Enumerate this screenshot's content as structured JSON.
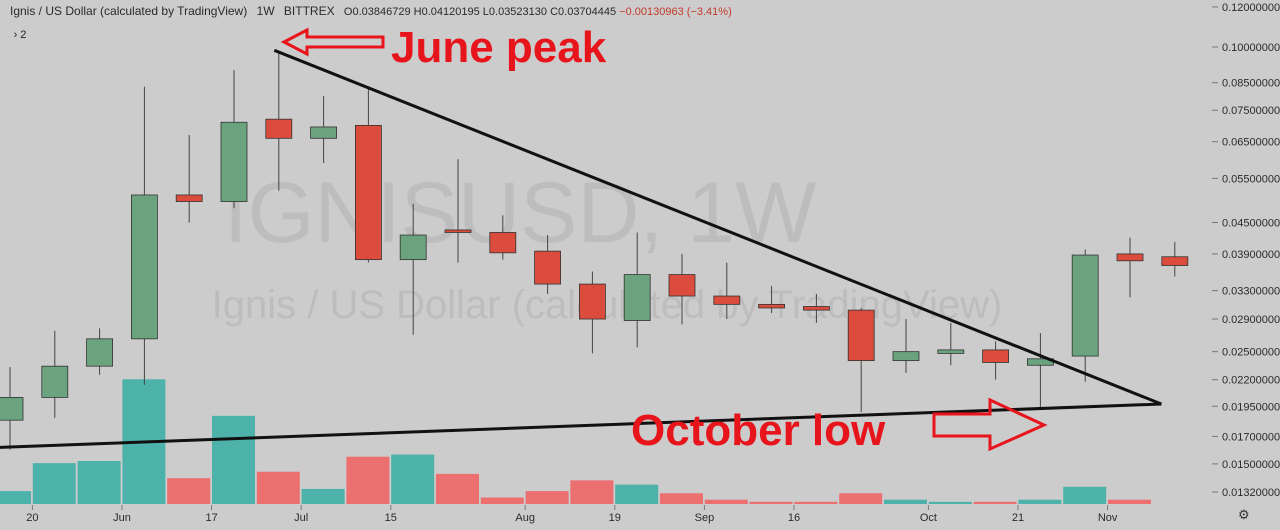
{
  "header": {
    "symbol_desc": "Ignis / US Dollar (calculated by TradingView)",
    "interval": "1W",
    "exchange": "BITTREX",
    "open": "O0.03846729",
    "high": "H0.04120195",
    "low": "L0.03523130",
    "close": "C0.03704445",
    "change": "−0.00130963 (−3.41%)"
  },
  "indicator_toggle": "2",
  "watermark": {
    "symbol": "IGNISUSD, 1W",
    "desc": "Ignis / US Dollar (calculated by TradingView)"
  },
  "annotations": {
    "peak": "June peak",
    "low": "October low"
  },
  "colors": {
    "up": "#6aa37e",
    "down": "#dc4c3c",
    "vol_up": "#4db3aa",
    "vol_down": "#ec7070",
    "annotation": "#e8141c",
    "background": "#cccccc"
  },
  "icons": {
    "settings": "gear-icon",
    "collapse": "chevron-right-icon"
  },
  "chart_data": {
    "type": "candlestick",
    "price_axis": {
      "scale": "log",
      "labels": [
        "0.12000000",
        "0.10000000",
        "0.08500000",
        "0.07500000",
        "0.06500000",
        "0.05500000",
        "0.04500000",
        "0.03900000",
        "0.03300000",
        "0.02900000",
        "0.02500000",
        "0.02200000",
        "0.01950000",
        "0.01700000",
        "0.01500000",
        "0.01320000"
      ],
      "values": [
        0.12,
        0.1,
        0.085,
        0.075,
        0.065,
        0.055,
        0.045,
        0.039,
        0.033,
        0.029,
        0.025,
        0.022,
        0.0195,
        0.017,
        0.015,
        0.0132
      ]
    },
    "time_labels": [
      {
        "label": "20",
        "i": 0.5
      },
      {
        "label": "Jun",
        "i": 2.5
      },
      {
        "label": "17",
        "i": 4.5
      },
      {
        "label": "Jul",
        "i": 6.5
      },
      {
        "label": "15",
        "i": 8.5
      },
      {
        "label": "Aug",
        "i": 11.5
      },
      {
        "label": "19",
        "i": 13.5
      },
      {
        "label": "Sep",
        "i": 15.5
      },
      {
        "label": "16",
        "i": 17.5
      },
      {
        "label": "Oct",
        "i": 20.5
      },
      {
        "label": "21",
        "i": 22.5
      },
      {
        "label": "Nov",
        "i": 24.5
      }
    ],
    "candles": [
      {
        "o": 0.0183,
        "h": 0.0233,
        "l": 0.016,
        "c": 0.0203
      },
      {
        "o": 0.0203,
        "h": 0.0275,
        "l": 0.0185,
        "c": 0.0234
      },
      {
        "o": 0.0234,
        "h": 0.0278,
        "l": 0.0225,
        "c": 0.0265
      },
      {
        "o": 0.0265,
        "h": 0.0835,
        "l": 0.0215,
        "c": 0.051
      },
      {
        "o": 0.051,
        "h": 0.067,
        "l": 0.045,
        "c": 0.0495
      },
      {
        "o": 0.0495,
        "h": 0.09,
        "l": 0.048,
        "c": 0.071
      },
      {
        "o": 0.072,
        "h": 0.098,
        "l": 0.052,
        "c": 0.066
      },
      {
        "o": 0.066,
        "h": 0.08,
        "l": 0.059,
        "c": 0.0695
      },
      {
        "o": 0.07,
        "h": 0.0825,
        "l": 0.0375,
        "c": 0.038
      },
      {
        "o": 0.038,
        "h": 0.049,
        "l": 0.027,
        "c": 0.0425
      },
      {
        "o": 0.0435,
        "h": 0.06,
        "l": 0.0375,
        "c": 0.043
      },
      {
        "o": 0.043,
        "h": 0.0465,
        "l": 0.038,
        "c": 0.0392
      },
      {
        "o": 0.0395,
        "h": 0.0425,
        "l": 0.0325,
        "c": 0.034
      },
      {
        "o": 0.034,
        "h": 0.036,
        "l": 0.0248,
        "c": 0.029
      },
      {
        "o": 0.0288,
        "h": 0.043,
        "l": 0.0255,
        "c": 0.0355
      },
      {
        "o": 0.0355,
        "h": 0.039,
        "l": 0.0283,
        "c": 0.0322
      },
      {
        "o": 0.0322,
        "h": 0.0375,
        "l": 0.029,
        "c": 0.031
      },
      {
        "o": 0.031,
        "h": 0.0337,
        "l": 0.0298,
        "c": 0.0305
      },
      {
        "o": 0.0307,
        "h": 0.0325,
        "l": 0.0285,
        "c": 0.0302
      },
      {
        "o": 0.0302,
        "h": 0.0305,
        "l": 0.019,
        "c": 0.024
      },
      {
        "o": 0.024,
        "h": 0.029,
        "l": 0.0227,
        "c": 0.025
      },
      {
        "o": 0.0248,
        "h": 0.0285,
        "l": 0.0235,
        "c": 0.0252
      },
      {
        "o": 0.0252,
        "h": 0.0262,
        "l": 0.022,
        "c": 0.0238
      },
      {
        "o": 0.0235,
        "h": 0.0272,
        "l": 0.0193,
        "c": 0.0242
      },
      {
        "o": 0.0245,
        "h": 0.0398,
        "l": 0.0218,
        "c": 0.0388
      },
      {
        "o": 0.039,
        "h": 0.042,
        "l": 0.032,
        "c": 0.0378
      },
      {
        "o": 0.0385,
        "h": 0.0412,
        "l": 0.0352,
        "c": 0.037
      }
    ],
    "volume": [
      {
        "v": 6,
        "up": true
      },
      {
        "v": 19,
        "up": true
      },
      {
        "v": 20,
        "up": true
      },
      {
        "v": 58,
        "up": true
      },
      {
        "v": 12,
        "up": false
      },
      {
        "v": 41,
        "up": true
      },
      {
        "v": 15,
        "up": false
      },
      {
        "v": 7,
        "up": true
      },
      {
        "v": 22,
        "up": false
      },
      {
        "v": 23,
        "up": true
      },
      {
        "v": 14,
        "up": false
      },
      {
        "v": 3,
        "up": false
      },
      {
        "v": 6,
        "up": false
      },
      {
        "v": 11,
        "up": false
      },
      {
        "v": 9,
        "up": true
      },
      {
        "v": 5,
        "up": false
      },
      {
        "v": 2,
        "up": false
      },
      {
        "v": 1,
        "up": false
      },
      {
        "v": 1,
        "up": false
      },
      {
        "v": 5,
        "up": false
      },
      {
        "v": 2,
        "up": true
      },
      {
        "v": 1,
        "up": true
      },
      {
        "v": 1,
        "up": false
      },
      {
        "v": 2,
        "up": true
      },
      {
        "v": 8,
        "up": true
      },
      {
        "v": 2,
        "up": false
      },
      {
        "v": 0,
        "up": false
      }
    ],
    "trendlines": [
      {
        "from": {
          "i": 5.9,
          "price": 0.0985
        },
        "to": {
          "i": 25.7,
          "price": 0.0197
        }
      },
      {
        "from": {
          "i": -0.4,
          "price": 0.01615
        },
        "to": {
          "i": 25.7,
          "price": 0.0197
        }
      }
    ]
  }
}
